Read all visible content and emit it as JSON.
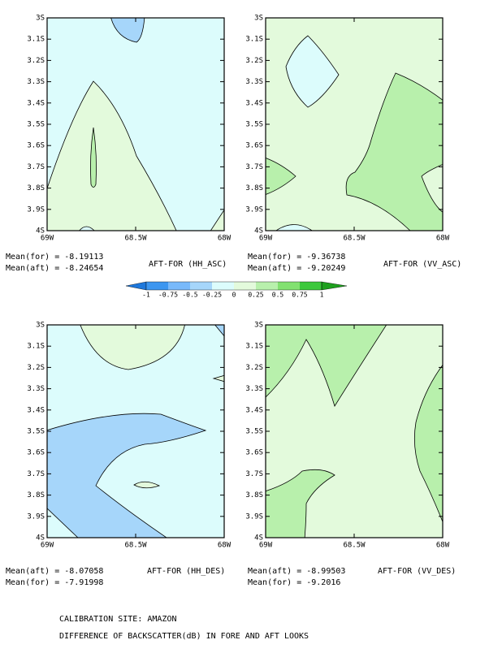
{
  "panels": [
    {
      "title": "AFT-FOR (HH_ASC)",
      "stats": [
        "Mean(for) = -8.19113",
        "Mean(aft) = -8.24654"
      ]
    },
    {
      "title": "AFT-FOR (VV_ASC)",
      "stats": [
        "Mean(for) = -9.36738",
        "Mean(aft) = -9.20249"
      ]
    },
    {
      "title": "AFT-FOR (HH_DES)",
      "stats": [
        "Mean(aft) = -8.07058",
        "Mean(for) = -7.91998"
      ]
    },
    {
      "title": "AFT-FOR (VV_DES)",
      "stats": [
        "Mean(aft) = -8.99503",
        "Mean(for) = -9.2016"
      ]
    }
  ],
  "y_ticks": [
    "3S",
    "3.1S",
    "3.2S",
    "3.3S",
    "3.4S",
    "3.5S",
    "3.6S",
    "3.7S",
    "3.8S",
    "3.9S",
    "4S"
  ],
  "x_ticks": [
    "69W",
    "68.5W",
    "68W"
  ],
  "colorbar": {
    "labels": [
      "-1",
      "-0.75",
      "-0.5",
      "-0.25",
      "0",
      "0.25",
      "0.5",
      "0.75",
      "1"
    ]
  },
  "footer": [
    "CALIBRATION SITE: AMAZON",
    "DIFFERENCE OF BACKSCATTER(dB) IN FORE AND AFT LOOKS"
  ]
}
